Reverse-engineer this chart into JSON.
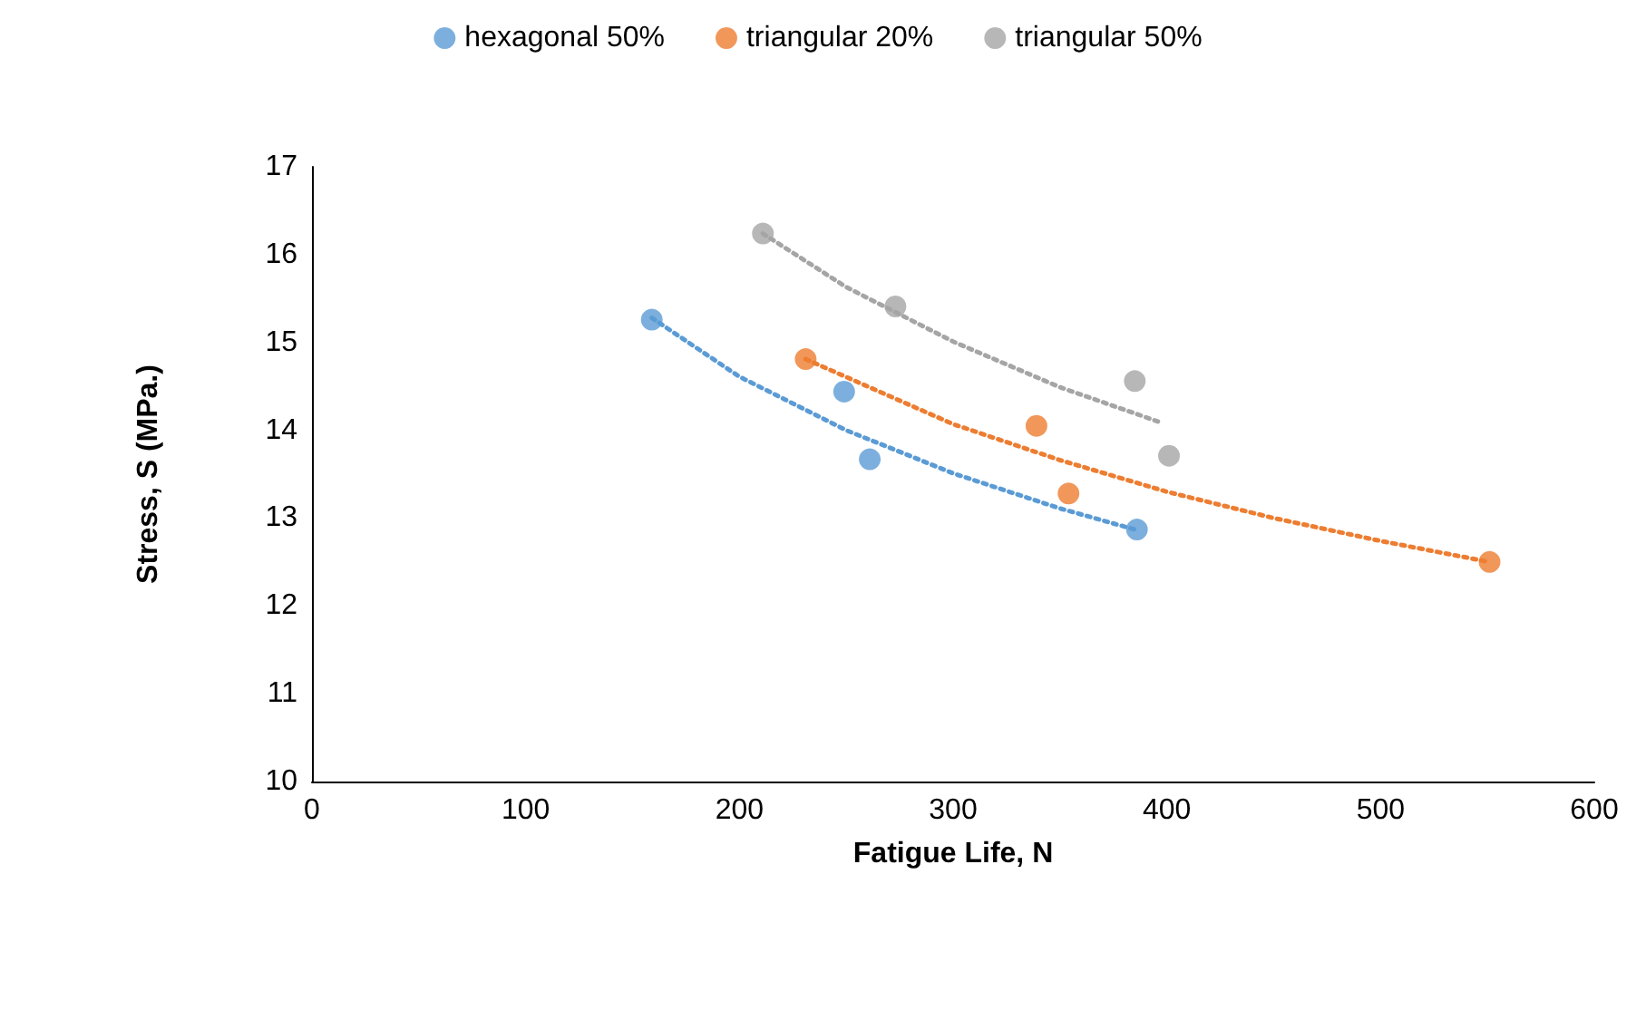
{
  "chart_data": {
    "type": "scatter",
    "xlabel": "Fatigue Life, N",
    "ylabel": "Stress, S (MPa.)",
    "xlim": [
      0,
      600
    ],
    "xticks": [
      0,
      100,
      200,
      300,
      400,
      500,
      600
    ],
    "ylim": [
      10,
      17
    ],
    "yticks": [
      10,
      11,
      12,
      13,
      14,
      15,
      16,
      17
    ],
    "grid": false,
    "legend": "top",
    "marker": "circle",
    "series": [
      {
        "name": "hexagonal 50%",
        "color": "#5b9bd5",
        "x": [
          159,
          249,
          261,
          386
        ],
        "values": [
          15.26,
          14.44,
          13.67,
          12.87
        ]
      },
      {
        "name": "triangular 20%",
        "color": "#ed7d31",
        "x": [
          231,
          339,
          354,
          551
        ],
        "values": [
          14.81,
          14.05,
          13.28,
          12.5
        ]
      },
      {
        "name": "triangular 50%",
        "color": "#a5a5a5",
        "x": [
          211,
          273,
          385,
          401
        ],
        "values": [
          16.24,
          15.41,
          14.56,
          13.71
        ]
      },
      {
        "type": "line",
        "line_style": "dotted",
        "marker": "none",
        "color": "#5b9bd5",
        "x": [
          159,
          200,
          250,
          300,
          350,
          385
        ],
        "values": [
          15.28,
          14.61,
          14.0,
          13.51,
          13.11,
          12.87
        ]
      },
      {
        "type": "line",
        "line_style": "dotted",
        "marker": "none",
        "color": "#ed7d31",
        "x": [
          231,
          300,
          350,
          400,
          450,
          500,
          551
        ],
        "values": [
          14.81,
          14.07,
          13.66,
          13.3,
          13.0,
          12.74,
          12.5
        ]
      },
      {
        "type": "line",
        "line_style": "dotted",
        "marker": "none",
        "color": "#a5a5a5",
        "x": [
          211,
          250,
          300,
          350,
          397
        ],
        "values": [
          16.24,
          15.63,
          15.01,
          14.49,
          14.09
        ]
      }
    ]
  }
}
